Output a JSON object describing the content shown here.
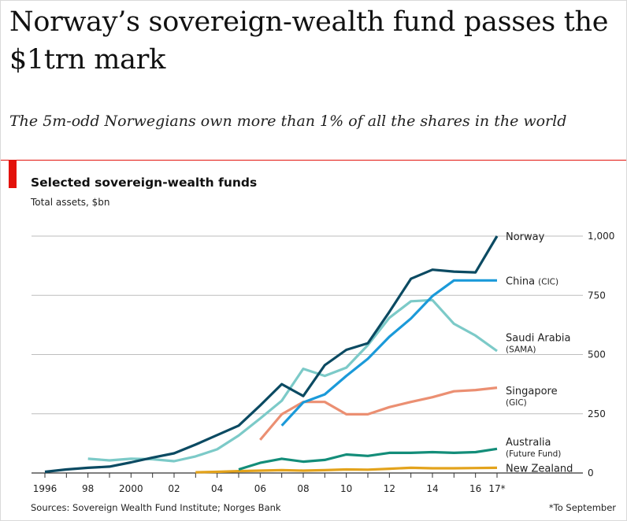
{
  "headline": "Norway’s sovereign-wealth fund passes the $1trn mark",
  "subheadline": "The 5m-odd Norwegians own more than 1% of all the shares in the world",
  "source": "Sources: Sovereign Wealth Fund Institute; Norges Bank",
  "footnote": "*To September",
  "chart_data": {
    "type": "line",
    "title": "Selected sovereign-wealth funds",
    "ylabel": "Total assets, $bn",
    "xlabel": "",
    "xlim": [
      1996,
      2017
    ],
    "ylim": [
      0,
      1000
    ],
    "y_ticks": [
      0,
      250,
      500,
      750,
      1000
    ],
    "y_tick_labels": [
      "0",
      "250",
      "500",
      "750",
      "1,000"
    ],
    "x_ticks": [
      1996,
      1998,
      2000,
      2002,
      2004,
      2006,
      2008,
      2010,
      2012,
      2014,
      2016,
      2017
    ],
    "x_tick_labels": [
      "1996",
      "98",
      "2000",
      "02",
      "04",
      "06",
      "08",
      "10",
      "12",
      "14",
      "16",
      "17*"
    ],
    "grid": true,
    "series": [
      {
        "name": "Norway",
        "color": "#0b4a62",
        "x": [
          1996,
          1997,
          1998,
          1999,
          2000,
          2001,
          2002,
          2003,
          2004,
          2005,
          2006,
          2007,
          2008,
          2009,
          2010,
          2011,
          2012,
          2013,
          2014,
          2015,
          2016,
          2017
        ],
        "values": [
          5,
          15,
          22,
          27,
          45,
          65,
          83,
          120,
          160,
          200,
          285,
          375,
          325,
          455,
          520,
          548,
          680,
          820,
          858,
          850,
          847,
          1000
        ]
      },
      {
        "name": "China (CIC)",
        "color": "#1b9ad9",
        "x": [
          2007,
          2008,
          2009,
          2010,
          2011,
          2012,
          2013,
          2014,
          2015,
          2016,
          2017
        ],
        "values": [
          200,
          298,
          332,
          410,
          482,
          575,
          652,
          747,
          813,
          813,
          813
        ]
      },
      {
        "name": "Saudi Arabia (SAMA)",
        "color": "#7ccac8",
        "x": [
          1998,
          1999,
          2000,
          2001,
          2002,
          2003,
          2004,
          2005,
          2006,
          2007,
          2008,
          2009,
          2010,
          2011,
          2012,
          2013,
          2014,
          2015,
          2016,
          2017
        ],
        "values": [
          60,
          53,
          60,
          58,
          50,
          70,
          100,
          158,
          230,
          305,
          440,
          410,
          445,
          540,
          655,
          725,
          730,
          630,
          580,
          515
        ]
      },
      {
        "name": "Singapore (GIC)",
        "color": "#eb8f72",
        "x": [
          2006,
          2007,
          2008,
          2009,
          2010,
          2011,
          2012,
          2013,
          2014,
          2015,
          2016,
          2017
        ],
        "values": [
          140,
          248,
          300,
          300,
          248,
          248,
          278,
          300,
          320,
          345,
          350,
          360
        ]
      },
      {
        "name": "Australia (Future Fund)",
        "color": "#138d79",
        "x": [
          2005,
          2006,
          2007,
          2008,
          2009,
          2010,
          2011,
          2012,
          2013,
          2014,
          2015,
          2016,
          2017
        ],
        "values": [
          15,
          43,
          60,
          48,
          55,
          78,
          72,
          85,
          85,
          88,
          85,
          88,
          102
        ]
      },
      {
        "name": "New Zealand",
        "color": "#e3a31c",
        "x": [
          2003,
          2004,
          2005,
          2006,
          2007,
          2008,
          2009,
          2010,
          2011,
          2012,
          2013,
          2014,
          2015,
          2016,
          2017
        ],
        "values": [
          3,
          5,
          8,
          10,
          12,
          10,
          12,
          15,
          14,
          18,
          22,
          20,
          20,
          21,
          22
        ]
      }
    ],
    "legend": [
      {
        "line1": "Norway",
        "line2": "",
        "value_anchor": 1000
      },
      {
        "line1": "China",
        "line2_inline": "(CIC)",
        "line2": "",
        "value_anchor": 813
      },
      {
        "line1": "Saudi Arabia",
        "line2": "(SAMA)",
        "value_anchor": 550
      },
      {
        "line1": "Singapore",
        "line2": "(GIC)",
        "value_anchor": 325
      },
      {
        "line1": "Australia",
        "line2": "(Future Fund)",
        "value_anchor": 110
      },
      {
        "line1": "New Zealand",
        "line2": "",
        "value_anchor": 22
      }
    ]
  }
}
